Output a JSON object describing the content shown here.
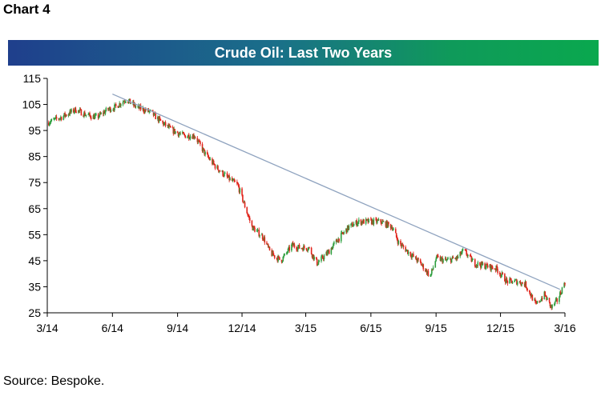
{
  "header": {
    "chart_label": "Chart 4"
  },
  "footer": {
    "source": "Source: Bespoke."
  },
  "colors": {
    "up": "#2e9e3e",
    "down": "#e0241b",
    "trendline": "#8fa3bf",
    "axis": "#000000",
    "title_band_start": "#1f3f8c",
    "title_band_end": "#0aa84e"
  },
  "chart_data": {
    "type": "candlestick",
    "title": "Crude Oil: Last Two Years",
    "ylim": [
      25,
      115
    ],
    "yticks": [
      115,
      105,
      95,
      85,
      75,
      65,
      55,
      45,
      35,
      25
    ],
    "ytick_labels": [
      "115",
      "105",
      "95",
      "85",
      "75",
      "65",
      "55",
      "45",
      "35",
      "25"
    ],
    "xlim": [
      "2014-03-01",
      "2016-03-01"
    ],
    "xticks": [
      "2014-03-01",
      "2014-06-01",
      "2014-09-01",
      "2014-12-01",
      "2015-03-01",
      "2015-06-01",
      "2015-09-01",
      "2015-12-01",
      "2016-03-01"
    ],
    "xtick_labels": [
      "3/14",
      "6/14",
      "9/14",
      "12/14",
      "3/15",
      "6/15",
      "9/15",
      "12/15",
      "3/16"
    ],
    "grid": false,
    "approx_close_path": [
      [
        "2014-03-01",
        98
      ],
      [
        "2014-03-20",
        100
      ],
      [
        "2014-04-10",
        103
      ],
      [
        "2014-04-25",
        101
      ],
      [
        "2014-05-10",
        100
      ],
      [
        "2014-05-25",
        103
      ],
      [
        "2014-06-05",
        104
      ],
      [
        "2014-06-20",
        107
      ],
      [
        "2014-07-05",
        104
      ],
      [
        "2014-07-25",
        102
      ],
      [
        "2014-08-10",
        98
      ],
      [
        "2014-08-25",
        95
      ],
      [
        "2014-09-10",
        93
      ],
      [
        "2014-09-25",
        93
      ],
      [
        "2014-10-10",
        86
      ],
      [
        "2014-10-25",
        81
      ],
      [
        "2014-11-10",
        77
      ],
      [
        "2014-11-25",
        74
      ],
      [
        "2014-12-05",
        66
      ],
      [
        "2014-12-15",
        58
      ],
      [
        "2014-12-31",
        54
      ],
      [
        "2015-01-10",
        48
      ],
      [
        "2015-01-25",
        45
      ],
      [
        "2015-02-10",
        51
      ],
      [
        "2015-02-20",
        50
      ],
      [
        "2015-03-05",
        50
      ],
      [
        "2015-03-17",
        44
      ],
      [
        "2015-04-01",
        48
      ],
      [
        "2015-04-15",
        53
      ],
      [
        "2015-05-01",
        58
      ],
      [
        "2015-05-15",
        60
      ],
      [
        "2015-06-01",
        60
      ],
      [
        "2015-06-15",
        60
      ],
      [
        "2015-07-01",
        58
      ],
      [
        "2015-07-10",
        52
      ],
      [
        "2015-07-25",
        48
      ],
      [
        "2015-08-10",
        44
      ],
      [
        "2015-08-24",
        39
      ],
      [
        "2015-09-01",
        46
      ],
      [
        "2015-09-15",
        45
      ],
      [
        "2015-10-01",
        46
      ],
      [
        "2015-10-10",
        49
      ],
      [
        "2015-10-25",
        44
      ],
      [
        "2015-11-10",
        43
      ],
      [
        "2015-11-25",
        42
      ],
      [
        "2015-12-10",
        37
      ],
      [
        "2015-12-25",
        37
      ],
      [
        "2016-01-05",
        36
      ],
      [
        "2016-01-20",
        28
      ],
      [
        "2016-02-01",
        32
      ],
      [
        "2016-02-11",
        27
      ],
      [
        "2016-02-20",
        30
      ],
      [
        "2016-03-01",
        37
      ]
    ],
    "trendline": {
      "start": [
        "2014-06-01",
        109
      ],
      "end": [
        "2016-02-23",
        34
      ]
    }
  }
}
